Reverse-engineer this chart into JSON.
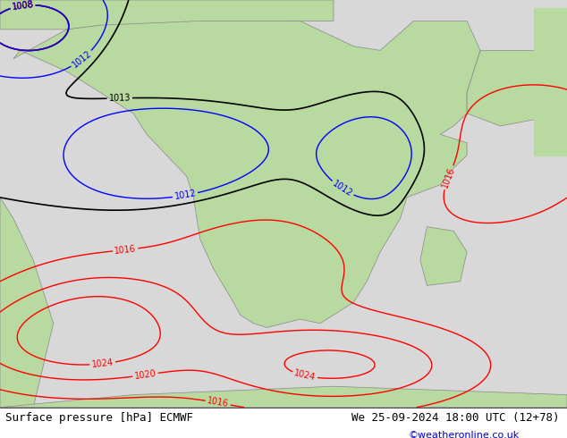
{
  "title_left": "Surface pressure [hPa] ECMWF",
  "title_right": "We 25-09-2024 18:00 UTC (12+78)",
  "credit": "©weatheronline.co.uk",
  "bg_color": "#d3d3d3",
  "land_color": "#b8d9a0",
  "figsize": [
    6.34,
    4.9
  ],
  "dpi": 100,
  "map_extent": [
    -20,
    60,
    -50,
    40
  ],
  "footer_left": "Surface pressure [hPa] ECMWF",
  "footer_right": "We 25-09-2024 18:00 UTC (12+78)",
  "footer_credit": "©weatheronline.co.uk"
}
